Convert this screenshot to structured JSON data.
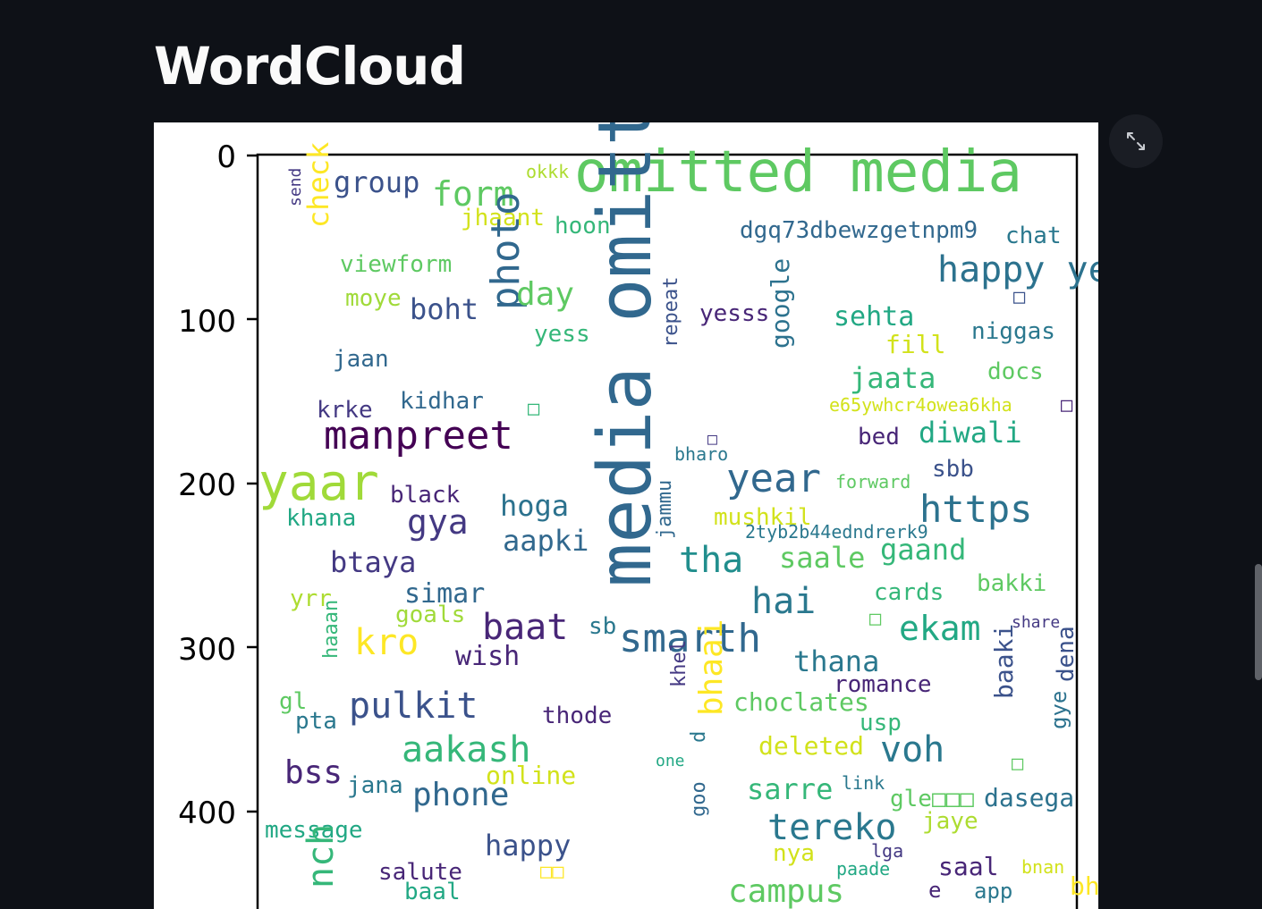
{
  "page": {
    "title": "WordCloud"
  },
  "toolbar": {
    "fullscreen_icon": "expand-icon"
  },
  "figure": {
    "y_ticks": [
      "0",
      "100",
      "200",
      "300",
      "400"
    ],
    "words": [
      {
        "t": "omitted media",
        "c": "#5ec962",
        "s": 64,
        "r": 0
      },
      {
        "t": "media omitted",
        "c": "#31688e",
        "s": 82,
        "r": -90
      },
      {
        "t": "group",
        "c": "#3b528b",
        "s": 32,
        "r": 0
      },
      {
        "t": "form",
        "c": "#5ec962",
        "s": 38,
        "r": 0
      },
      {
        "t": "okkk",
        "c": "#addc30",
        "s": 20,
        "r": 0
      },
      {
        "t": "send",
        "c": "#443983",
        "s": 18,
        "r": -90
      },
      {
        "t": "check",
        "c": "#fde725",
        "s": 32,
        "r": -90
      },
      {
        "t": "jhaant",
        "c": "#d2e21b",
        "s": 26,
        "r": 0
      },
      {
        "t": "hoon",
        "c": "#35b779",
        "s": 26,
        "r": 0
      },
      {
        "t": "dgq73dbewzgetnpm9",
        "c": "#31688e",
        "s": 26,
        "r": 0
      },
      {
        "t": "chat",
        "c": "#2a788e",
        "s": 26,
        "r": 0
      },
      {
        "t": "viewform",
        "c": "#5ec962",
        "s": 26,
        "r": 0
      },
      {
        "t": "happy year",
        "c": "#2c728e",
        "s": 40,
        "r": 0
      },
      {
        "t": "moye",
        "c": "#a0da39",
        "s": 26,
        "r": 0
      },
      {
        "t": "boht",
        "c": "#3b528b",
        "s": 32,
        "r": 0
      },
      {
        "t": "photo",
        "c": "#31688e",
        "s": 44,
        "r": -90
      },
      {
        "t": "day",
        "c": "#5ec962",
        "s": 36,
        "r": 0
      },
      {
        "t": "yesss",
        "c": "#482677",
        "s": 26,
        "r": 0
      },
      {
        "t": "sehta",
        "c": "#22a884",
        "s": 30,
        "r": 0
      },
      {
        "t": "□",
        "c": "#3b528b",
        "s": 22,
        "r": 0
      },
      {
        "t": "fill",
        "c": "#d2e21b",
        "s": 28,
        "r": 0
      },
      {
        "t": "niggas",
        "c": "#2a788e",
        "s": 26,
        "r": 0
      },
      {
        "t": "yess",
        "c": "#35b779",
        "s": 26,
        "r": 0
      },
      {
        "t": "jaan",
        "c": "#31688e",
        "s": 26,
        "r": 0
      },
      {
        "t": "repeat",
        "c": "#3b528b",
        "s": 22,
        "r": -90
      },
      {
        "t": "google",
        "c": "#2c728e",
        "s": 28,
        "r": -90
      },
      {
        "t": "jaata",
        "c": "#35b779",
        "s": 32,
        "r": 0
      },
      {
        "t": "docs",
        "c": "#5ec962",
        "s": 26,
        "r": 0
      },
      {
        "t": "krke",
        "c": "#443983",
        "s": 26,
        "r": 0
      },
      {
        "t": "kidhar",
        "c": "#31688e",
        "s": 26,
        "r": 0
      },
      {
        "t": "□",
        "c": "#35b779",
        "s": 22,
        "r": 0
      },
      {
        "t": "e65ywhcr4owea6kha",
        "c": "#d2e21b",
        "s": 20,
        "r": 0
      },
      {
        "t": "□",
        "c": "#482677",
        "s": 22,
        "r": 0
      },
      {
        "t": "manpreet",
        "c": "#440154",
        "s": 44,
        "r": 0
      },
      {
        "t": "□",
        "c": "#443983",
        "s": 18,
        "r": 0
      },
      {
        "t": "bharo",
        "c": "#2a788e",
        "s": 20,
        "r": 0
      },
      {
        "t": "bed",
        "c": "#482677",
        "s": 26,
        "r": 0
      },
      {
        "t": "diwali",
        "c": "#22a884",
        "s": 32,
        "r": 0
      },
      {
        "t": "yaar",
        "c": "#a0da39",
        "s": 56,
        "r": 0
      },
      {
        "t": "black",
        "c": "#482677",
        "s": 26,
        "r": 0
      },
      {
        "t": "year",
        "c": "#31688e",
        "s": 44,
        "r": 0
      },
      {
        "t": "forward",
        "c": "#5ec962",
        "s": 20,
        "r": 0
      },
      {
        "t": "sbb",
        "c": "#3b528b",
        "s": 26,
        "r": 0
      },
      {
        "t": "khana",
        "c": "#22a884",
        "s": 26,
        "r": 0
      },
      {
        "t": "gya",
        "c": "#443983",
        "s": 38,
        "r": 0
      },
      {
        "t": "hoga",
        "c": "#2c728e",
        "s": 32,
        "r": 0
      },
      {
        "t": "jammu",
        "c": "#31688e",
        "s": 22,
        "r": -90
      },
      {
        "t": "mushkil",
        "c": "#d2e21b",
        "s": 26,
        "r": 0
      },
      {
        "t": "https",
        "c": "#2c728e",
        "s": 42,
        "r": 0
      },
      {
        "t": "2tyb2b44edndrerk9",
        "c": "#2a788e",
        "s": 20,
        "r": 0
      },
      {
        "t": "aapki",
        "c": "#31688e",
        "s": 32,
        "r": 0
      },
      {
        "t": "tha",
        "c": "#218e8d",
        "s": 40,
        "r": 0
      },
      {
        "t": "saale",
        "c": "#5ec962",
        "s": 32,
        "r": 0
      },
      {
        "t": "gaand",
        "c": "#35b779",
        "s": 32,
        "r": 0
      },
      {
        "t": "btaya",
        "c": "#443983",
        "s": 32,
        "r": 0
      },
      {
        "t": "simar",
        "c": "#31688e",
        "s": 30,
        "r": 0
      },
      {
        "t": "hai",
        "c": "#2a788e",
        "s": 40,
        "r": 0
      },
      {
        "t": "cards",
        "c": "#35b779",
        "s": 26,
        "r": 0
      },
      {
        "t": "bakki",
        "c": "#5ec962",
        "s": 26,
        "r": 0
      },
      {
        "t": "yrr",
        "c": "#addc30",
        "s": 26,
        "r": 0
      },
      {
        "t": "goals",
        "c": "#a0da39",
        "s": 26,
        "r": 0
      },
      {
        "t": "baat",
        "c": "#482677",
        "s": 40,
        "r": 0
      },
      {
        "t": "□",
        "c": "#5ec962",
        "s": 22,
        "r": 0
      },
      {
        "t": "share",
        "c": "#443983",
        "s": 18,
        "r": 0
      },
      {
        "t": "haaan",
        "c": "#35b779",
        "s": 22,
        "r": -90
      },
      {
        "t": "kro",
        "c": "#fde725",
        "s": 40,
        "r": 0
      },
      {
        "t": "sb",
        "c": "#2a788e",
        "s": 26,
        "r": 0
      },
      {
        "t": "smarth",
        "c": "#31688e",
        "s": 44,
        "r": 0
      },
      {
        "t": "ekam",
        "c": "#22a884",
        "s": 38,
        "r": 0
      },
      {
        "t": "wish",
        "c": "#482677",
        "s": 30,
        "r": 0
      },
      {
        "t": "thana",
        "c": "#2a788e",
        "s": 32,
        "r": 0
      },
      {
        "t": "baaki",
        "c": "#3b528b",
        "s": 28,
        "r": -90
      },
      {
        "t": "dena",
        "c": "#3b528b",
        "s": 26,
        "r": -90
      },
      {
        "t": "khel",
        "c": "#443983",
        "s": 22,
        "r": -90
      },
      {
        "t": "romance",
        "c": "#482677",
        "s": 26,
        "r": 0
      },
      {
        "t": "gl",
        "c": "#5ec962",
        "s": 26,
        "r": 0
      },
      {
        "t": "pulkit",
        "c": "#3b528b",
        "s": 40,
        "r": 0
      },
      {
        "t": "pta",
        "c": "#2a788e",
        "s": 26,
        "r": 0
      },
      {
        "t": "choclates",
        "c": "#5ec962",
        "s": 28,
        "r": 0
      },
      {
        "t": "thode",
        "c": "#482677",
        "s": 26,
        "r": 0
      },
      {
        "t": "usp",
        "c": "#35b779",
        "s": 26,
        "r": 0
      },
      {
        "t": "gye",
        "c": "#2c728e",
        "s": 24,
        "r": -90
      },
      {
        "t": "bhaai",
        "c": "#fde725",
        "s": 36,
        "r": -90
      },
      {
        "t": "aakash",
        "c": "#35b779",
        "s": 40,
        "r": 0
      },
      {
        "t": "deleted",
        "c": "#d2e21b",
        "s": 28,
        "r": 0
      },
      {
        "t": "d",
        "c": "#2a788e",
        "s": 22,
        "r": -90
      },
      {
        "t": "one",
        "c": "#22a884",
        "s": 18,
        "r": 0
      },
      {
        "t": "voh",
        "c": "#2a788e",
        "s": 40,
        "r": 0
      },
      {
        "t": "□",
        "c": "#5ec962",
        "s": 22,
        "r": 0
      },
      {
        "t": "bss",
        "c": "#482677",
        "s": 36,
        "r": 0
      },
      {
        "t": "online",
        "c": "#d2e21b",
        "s": 28,
        "r": 0
      },
      {
        "t": "jana",
        "c": "#2a788e",
        "s": 26,
        "r": 0
      },
      {
        "t": "phone",
        "c": "#31688e",
        "s": 36,
        "r": 0
      },
      {
        "t": "sarre",
        "c": "#35b779",
        "s": 32,
        "r": 0
      },
      {
        "t": "link",
        "c": "#2a788e",
        "s": 20,
        "r": 0
      },
      {
        "t": "gle□□□",
        "c": "#5ec962",
        "s": 26,
        "r": 0
      },
      {
        "t": "dasega",
        "c": "#2c728e",
        "s": 28,
        "r": 0
      },
      {
        "t": "goo",
        "c": "#31688e",
        "s": 22,
        "r": -90
      },
      {
        "t": "tereko",
        "c": "#2a788e",
        "s": 40,
        "r": 0
      },
      {
        "t": "jaye",
        "c": "#addc30",
        "s": 26,
        "r": 0
      },
      {
        "t": "message",
        "c": "#22a884",
        "s": 26,
        "r": 0
      },
      {
        "t": "happy",
        "c": "#3b528b",
        "s": 32,
        "r": 0
      },
      {
        "t": "lga",
        "c": "#443983",
        "s": 20,
        "r": 0
      },
      {
        "t": "nya",
        "c": "#d2e21b",
        "s": 26,
        "r": 0
      },
      {
        "t": "nch",
        "c": "#35b779",
        "s": 40,
        "r": -90
      },
      {
        "t": "salute",
        "c": "#482677",
        "s": 26,
        "r": 0
      },
      {
        "t": "□□",
        "c": "#fde725",
        "s": 22,
        "r": 0
      },
      {
        "t": "paade",
        "c": "#22a884",
        "s": 20,
        "r": 0
      },
      {
        "t": "saal",
        "c": "#482677",
        "s": 28,
        "r": 0
      },
      {
        "t": "bnan",
        "c": "#d2e21b",
        "s": 20,
        "r": 0
      },
      {
        "t": "baal",
        "c": "#22a884",
        "s": 26,
        "r": 0
      },
      {
        "t": "campus",
        "c": "#5ec962",
        "s": 36,
        "r": 0
      },
      {
        "t": "e",
        "c": "#482677",
        "s": 24,
        "r": 0
      },
      {
        "t": "bhaiii",
        "c": "#fde725",
        "s": 28,
        "r": 0
      },
      {
        "t": "app",
        "c": "#2a788e",
        "s": 24,
        "r": 0
      }
    ]
  }
}
